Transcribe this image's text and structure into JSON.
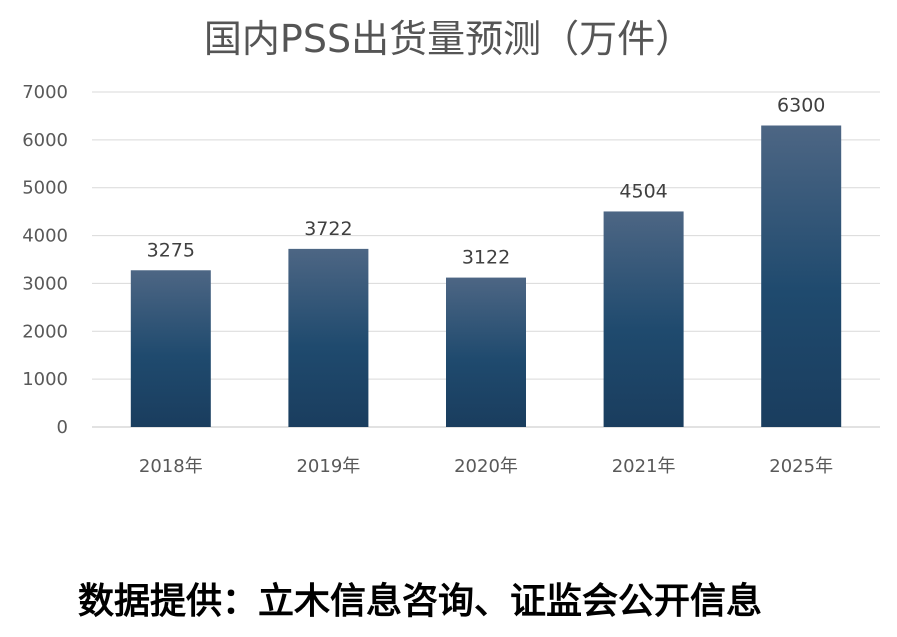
{
  "chart_data": {
    "type": "bar",
    "title": "国内PSS出货量预测（万件）",
    "categories": [
      "2018年",
      "2019年",
      "2020年",
      "2021年",
      "2025年"
    ],
    "values": [
      3275,
      3722,
      3122,
      4504,
      6300
    ],
    "data_labels": [
      "3275",
      "3722",
      "3122",
      "4504",
      "6300"
    ],
    "y_ticks": [
      "0",
      "1000",
      "2000",
      "3000",
      "4000",
      "5000",
      "6000",
      "7000"
    ],
    "ylim": [
      0,
      7000
    ],
    "xlabel": "",
    "ylabel": "",
    "grid": true,
    "bar_color_top": "#4d6684",
    "bar_color_bottom": "#1a3d5e",
    "gridline_color": "#d9d9d9"
  },
  "footer": {
    "source": "数据提供：立木信息咨询、证监会公开信息"
  }
}
